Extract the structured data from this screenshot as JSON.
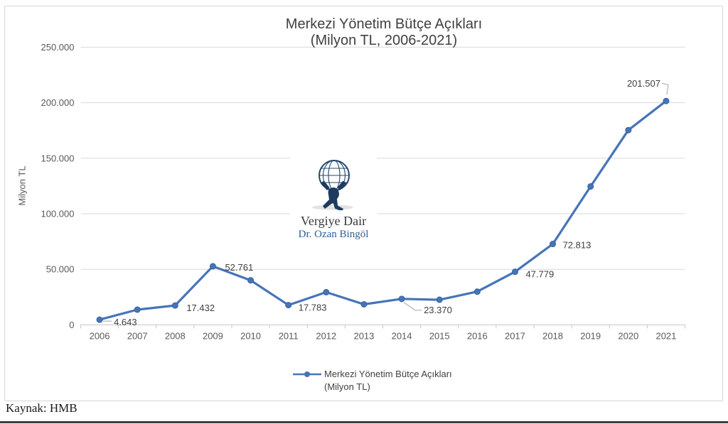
{
  "chart": {
    "title_line1": "Merkezi Yönetim Bütçe Açıkları",
    "title_line2": "(Milyon TL, 2006-2021)",
    "y_axis_title": "Milyon TL",
    "legend_line1": "Merkezi Yönetim Bütçe Açıkları",
    "legend_line2": "(Milyon TL)"
  },
  "watermark": {
    "brand": "Vergiye Dair",
    "author": "Dr. Ozan Bingöl",
    "icon": "atlas-globe-icon"
  },
  "footer": {
    "source": "Kaynak: HMB"
  },
  "colors": {
    "series": "#4674B8",
    "marker_edge": "#3A62A0",
    "gridline": "#D9D9D9",
    "axis": "#C6C6C6",
    "tick_text": "#595959",
    "label_text": "#404040",
    "leader": "#A6A6A6"
  },
  "chart_data": {
    "type": "line",
    "title": "Merkezi Yönetim Bütçe Açıkları (Milyon TL, 2006-2021)",
    "xlabel": "",
    "ylabel": "Milyon TL",
    "ylim": [
      0,
      250000
    ],
    "grid": "horizontal",
    "legend_position": "bottom",
    "categories": [
      "2006",
      "2007",
      "2008",
      "2009",
      "2010",
      "2011",
      "2012",
      "2013",
      "2014",
      "2015",
      "2016",
      "2017",
      "2018",
      "2019",
      "2020",
      "2021"
    ],
    "series": [
      {
        "name": "Merkezi Yönetim Bütçe Açıkları (Milyon TL)",
        "values": [
          4643,
          13700,
          17432,
          52761,
          40100,
          17783,
          29400,
          18500,
          23370,
          22600,
          29900,
          47779,
          72813,
          124600,
          175300,
          201507
        ]
      }
    ],
    "data_labels": [
      "4.643",
      null,
      "17.432",
      "52.761",
      null,
      "17.783",
      null,
      null,
      "23.370",
      null,
      null,
      "47.779",
      "72.813",
      null,
      null,
      "201.507"
    ],
    "y_tick_values": [
      0,
      50000,
      100000,
      150000,
      200000,
      250000
    ],
    "y_tick_labels": [
      "0",
      "50.000",
      "100.000",
      "150.000",
      "200.000",
      "250.000"
    ]
  }
}
